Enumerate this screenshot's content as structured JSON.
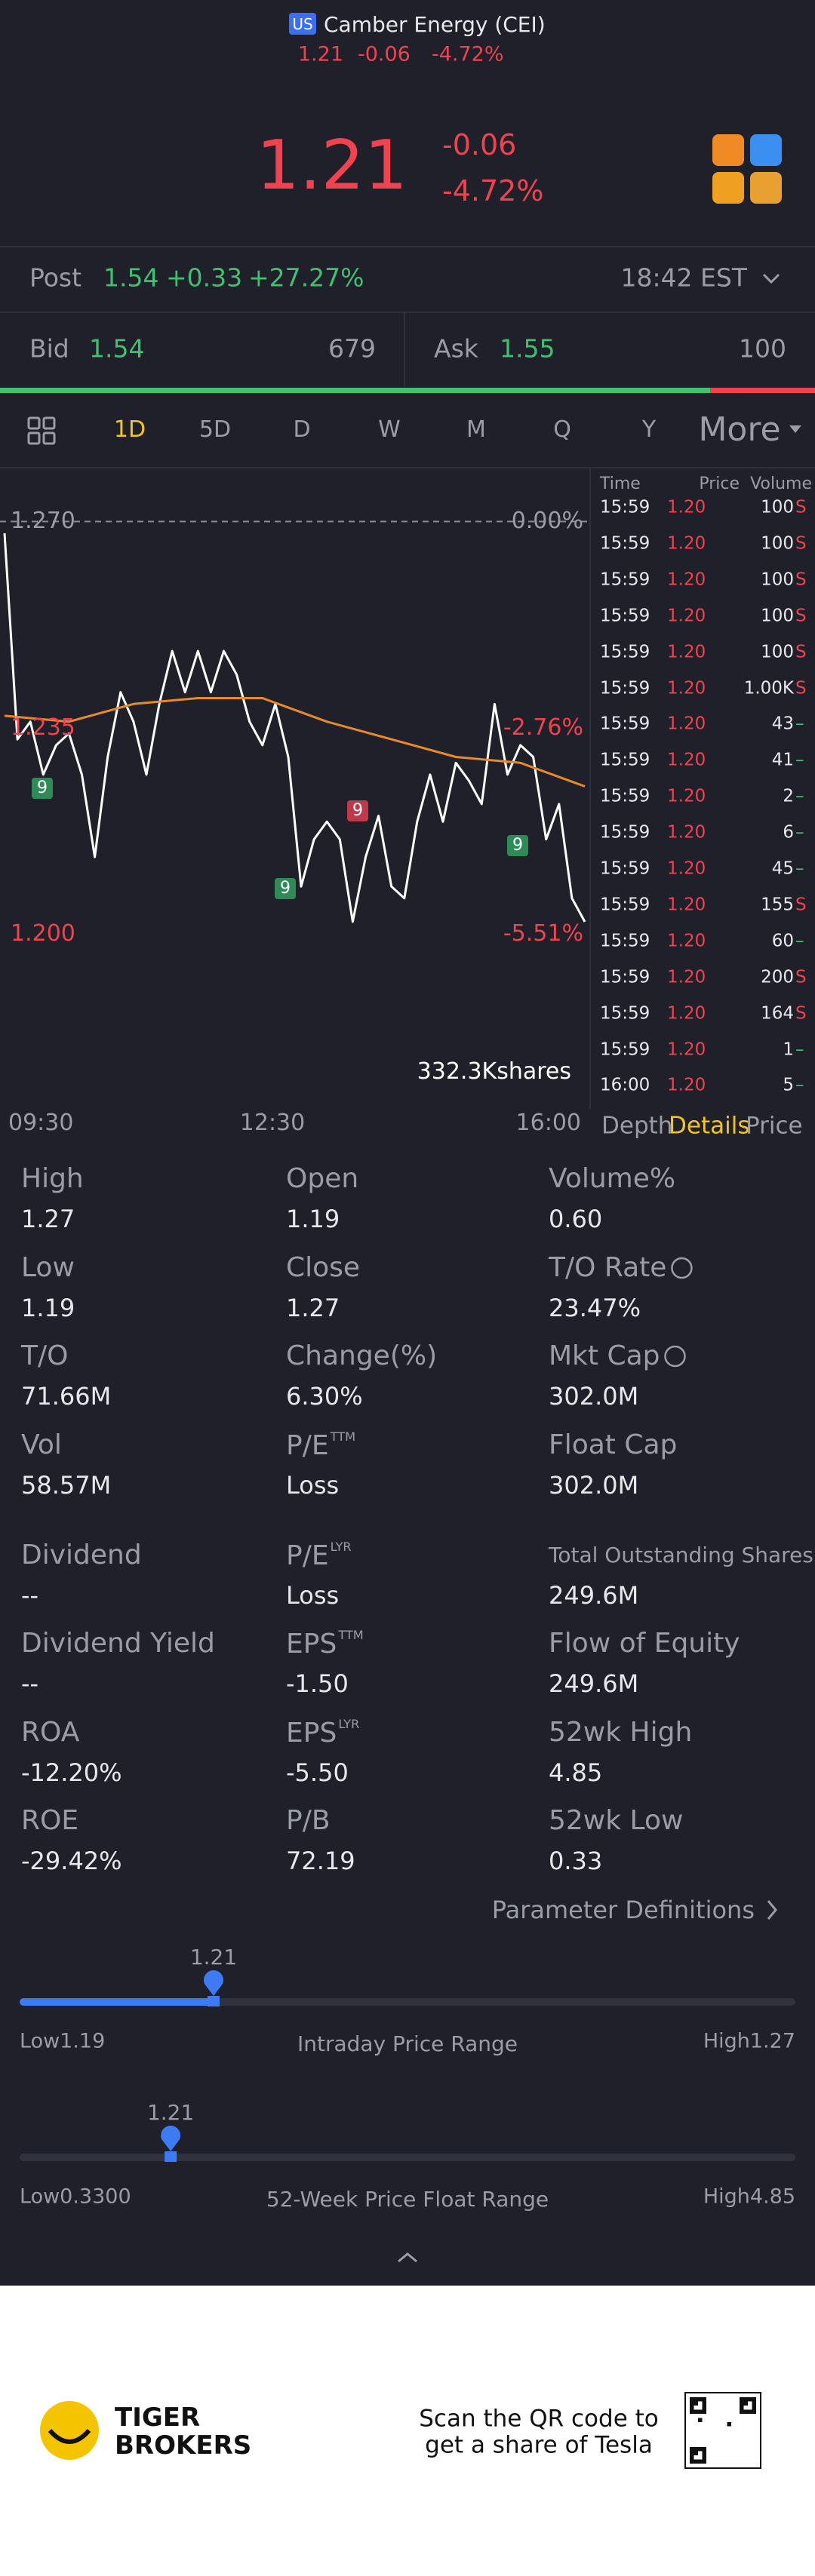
{
  "header": {
    "badge": "US",
    "name": "Camber Energy (CEI)",
    "price": "1.21",
    "change": "-0.06",
    "pct": "-4.72%"
  },
  "quote": {
    "price": "1.21",
    "change": "-0.06",
    "pct": "-4.72%"
  },
  "post": {
    "label": "Post",
    "price": "1.54",
    "change": "+0.33",
    "pct": "+27.27%",
    "time": "18:42 EST"
  },
  "bid": {
    "label": "Bid",
    "price": "1.54",
    "size": 679
  },
  "ask": {
    "label": "Ask",
    "price": "1.55",
    "size": 100
  },
  "tabs": [
    "1D",
    "5D",
    "D",
    "W",
    "M",
    "Q",
    "Y",
    "More"
  ],
  "chart_data": {
    "type": "line",
    "series": [
      {
        "color": "#ffffff",
        "values": [
          1.268,
          1.233,
          1.236,
          1.227,
          1.232,
          1.234,
          1.227,
          1.213,
          1.23,
          1.241,
          1.236,
          1.227,
          1.239,
          1.248,
          1.241,
          1.248,
          1.241,
          1.248,
          1.244,
          1.236,
          1.232,
          1.239,
          1.23,
          1.208,
          1.216,
          1.219,
          1.216,
          1.202,
          1.213,
          1.22,
          1.208,
          1.206,
          1.219,
          1.227,
          1.219,
          1.229,
          1.226,
          1.222,
          1.239,
          1.227,
          1.232,
          1.23,
          1.216,
          1.222,
          1.206,
          1.202
        ]
      },
      {
        "color": "#e8892a",
        "values": [
          1.237,
          1.236,
          1.239,
          1.24,
          1.24,
          1.236,
          1.233,
          1.23,
          1.229,
          1.225
        ]
      }
    ],
    "ylim": [
      1.192,
      1.278
    ],
    "yticks": [
      {
        "value": 1.27,
        "label": "1.270"
      },
      {
        "value": 1.235,
        "label": "1.235"
      },
      {
        "value": 1.2,
        "label": "1.200"
      }
    ],
    "y2lim": [
      -6.14,
      0.63
    ],
    "y2ticks": [
      {
        "value": 0,
        "label": "0.00%"
      },
      {
        "value": -2.76,
        "label": "-2.76%"
      },
      {
        "value": -5.51,
        "label": "-5.51%"
      }
    ],
    "xlabels": [
      "09:30",
      "12:30",
      "16:00"
    ],
    "markers": [
      {
        "label": "9",
        "color": "#2e8b57"
      },
      {
        "label": "9",
        "color": "#2e8b57"
      },
      {
        "label": "9",
        "color": "#c0394a"
      },
      {
        "label": "9",
        "color": "#2e8b57"
      }
    ],
    "volume_label": "332.3Kshares"
  },
  "trades": {
    "headers": [
      "Time",
      "Price",
      "Volume"
    ],
    "rows": [
      [
        "15:59",
        "1.20",
        "100",
        "S"
      ],
      [
        "15:59",
        "1.20",
        "100",
        "S"
      ],
      [
        "15:59",
        "1.20",
        "100",
        "S"
      ],
      [
        "15:59",
        "1.20",
        "100",
        "S"
      ],
      [
        "15:59",
        "1.20",
        "100",
        "S"
      ],
      [
        "15:59",
        "1.20",
        "1.00K",
        "S"
      ],
      [
        "15:59",
        "1.20",
        "43",
        "–"
      ],
      [
        "15:59",
        "1.20",
        "41",
        "–"
      ],
      [
        "15:59",
        "1.20",
        "2",
        "–"
      ],
      [
        "15:59",
        "1.20",
        "6",
        "–"
      ],
      [
        "15:59",
        "1.20",
        "45",
        "–"
      ],
      [
        "15:59",
        "1.20",
        "155",
        "S"
      ],
      [
        "15:59",
        "1.20",
        "60",
        "–"
      ],
      [
        "15:59",
        "1.20",
        "200",
        "S"
      ],
      [
        "15:59",
        "1.20",
        "164",
        "S"
      ],
      [
        "15:59",
        "1.20",
        "1",
        "–"
      ],
      [
        "16:00",
        "1.20",
        "5",
        "–"
      ]
    ],
    "tabs": [
      "Depth",
      "Details",
      "Price"
    ]
  },
  "details": [
    {
      "label": "High",
      "value": "1.27"
    },
    {
      "label": "Open",
      "value": "1.19"
    },
    {
      "label": "Volume%",
      "value": "0.60"
    },
    {
      "label": "Low",
      "value": "1.19"
    },
    {
      "label": "Close",
      "value": "1.27"
    },
    {
      "label": "T/O Rate",
      "value": "23.47%",
      "info": true
    },
    {
      "label": "T/O",
      "value": "71.66M"
    },
    {
      "label": "Change(%)",
      "value": "6.30%"
    },
    {
      "label": "Mkt Cap",
      "value": "302.0M",
      "info": true
    },
    {
      "label": "Vol",
      "value": "58.57M"
    },
    {
      "label": "P/E",
      "sup": "TTM",
      "value": "Loss"
    },
    {
      "label": "Float Cap",
      "value": "302.0M"
    },
    {
      "label": "Dividend",
      "value": "--"
    },
    {
      "label": "P/E",
      "sup": "LYR",
      "value": "Loss"
    },
    {
      "label": "Total Outstanding Shares",
      "value": "249.6M",
      "small": true
    },
    {
      "label": "Dividend Yield",
      "value": "--"
    },
    {
      "label": "EPS",
      "sup": "TTM",
      "value": "-1.50"
    },
    {
      "label": "Flow of Equity",
      "value": "249.6M"
    },
    {
      "label": "ROA",
      "value": "-12.20%"
    },
    {
      "label": "EPS",
      "sup": "LYR",
      "value": "-5.50"
    },
    {
      "label": "52wk High",
      "value": "4.85"
    },
    {
      "label": "ROE",
      "value": "-29.42%"
    },
    {
      "label": "P/B",
      "value": "72.19"
    },
    {
      "label": "52wk Low",
      "value": "0.33"
    }
  ],
  "param_link": "Parameter Definitions",
  "ranges": [
    {
      "current": 1.21,
      "low_text": "Low",
      "low": 1.19,
      "title": "Intraday Price Range",
      "high_text": "High",
      "high": 1.27,
      "filled": true
    },
    {
      "current": 1.21,
      "low_text": "Low",
      "low": {
        "value": 0.33,
        "label": "0.3300"
      },
      "title": "52-Week Price Float Range",
      "high_text": "High",
      "high": 4.85,
      "filled": false
    }
  ],
  "footer": {
    "brand": [
      "TIGER",
      "BROKERS"
    ],
    "scan": [
      "Scan the QR code to",
      "get a share of Tesla"
    ]
  }
}
